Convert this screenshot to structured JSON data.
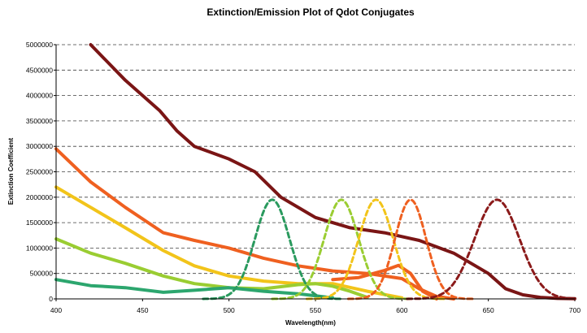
{
  "chart_data": {
    "type": "line",
    "title": "Extinction/Emission Plot of Qdot Conjugates",
    "xlabel": "Wavelength(nm)",
    "ylabel": "Extinction Coefficient",
    "xlim": [
      400,
      700
    ],
    "ylim": [
      0,
      5000000
    ],
    "x_ticks": [
      "400",
      "450",
      "500",
      "550",
      "600",
      "650",
      "700"
    ],
    "y_ticks": [
      "0",
      "500000",
      "1000000",
      "1500000",
      "2000000",
      "2500000",
      "3000000",
      "3500000",
      "4000000",
      "4500000",
      "5000000"
    ],
    "grid": "horizontal-dashed",
    "legend": "none",
    "series": [
      {
        "kind": "extinction",
        "color": "#7a1515",
        "x": [
          420,
          440,
          460,
          470,
          480,
          500,
          515,
          530,
          550,
          570,
          590,
          610,
          630,
          650,
          660,
          670,
          680,
          690,
          700
        ],
        "y": [
          5000000,
          4300000,
          3700000,
          3300000,
          3000000,
          2750000,
          2500000,
          2000000,
          1600000,
          1400000,
          1300000,
          1150000,
          900000,
          500000,
          200000,
          80000,
          30000,
          10000,
          5000
        ]
      },
      {
        "kind": "extinction",
        "color": "#ef6020",
        "x": [
          400,
          420,
          440,
          462,
          480,
          500,
          520,
          540,
          560,
          580,
          600,
          610,
          620,
          630
        ],
        "y": [
          2950000,
          2300000,
          1800000,
          1300000,
          1150000,
          1000000,
          800000,
          650000,
          550000,
          500000,
          400000,
          200000,
          50000,
          0
        ]
      },
      {
        "kind": "extinction",
        "color": "#ef6020",
        "x": [
          560,
          575,
          590,
          598,
          605,
          612,
          620
        ],
        "y": [
          380000,
          420000,
          560000,
          660000,
          500000,
          150000,
          0
        ]
      },
      {
        "kind": "extinction",
        "color": "#f2c41a",
        "x": [
          400,
          420,
          440,
          462,
          480,
          500,
          520,
          540,
          560,
          580,
          600
        ],
        "y": [
          2200000,
          1800000,
          1400000,
          950000,
          650000,
          450000,
          350000,
          300000,
          300000,
          150000,
          20000
        ]
      },
      {
        "kind": "extinction",
        "color": "#9acd32",
        "x": [
          400,
          420,
          440,
          462,
          480,
          500,
          520,
          540,
          550,
          560,
          570,
          580
        ],
        "y": [
          1180000,
          900000,
          700000,
          450000,
          300000,
          220000,
          200000,
          280000,
          300000,
          250000,
          150000,
          30000
        ]
      },
      {
        "kind": "extinction",
        "color": "#2ca66e",
        "x": [
          400,
          420,
          440,
          462,
          480,
          500,
          520,
          540,
          560
        ],
        "y": [
          380000,
          260000,
          220000,
          130000,
          170000,
          220000,
          150000,
          100000,
          20000
        ]
      },
      {
        "kind": "emission",
        "color": "#2a9a5e",
        "center": 525,
        "peak": 1950000,
        "sigma": 10
      },
      {
        "kind": "emission",
        "color": "#9acd32",
        "center": 565,
        "peak": 1950000,
        "sigma": 10
      },
      {
        "kind": "emission",
        "color": "#f2c41a",
        "center": 585,
        "peak": 1950000,
        "sigma": 10
      },
      {
        "kind": "emission",
        "color": "#ef6020",
        "center": 605,
        "peak": 1950000,
        "sigma": 9
      },
      {
        "kind": "emission",
        "color": "#8b1a1a",
        "center": 655,
        "peak": 1950000,
        "sigma": 13
      }
    ]
  }
}
